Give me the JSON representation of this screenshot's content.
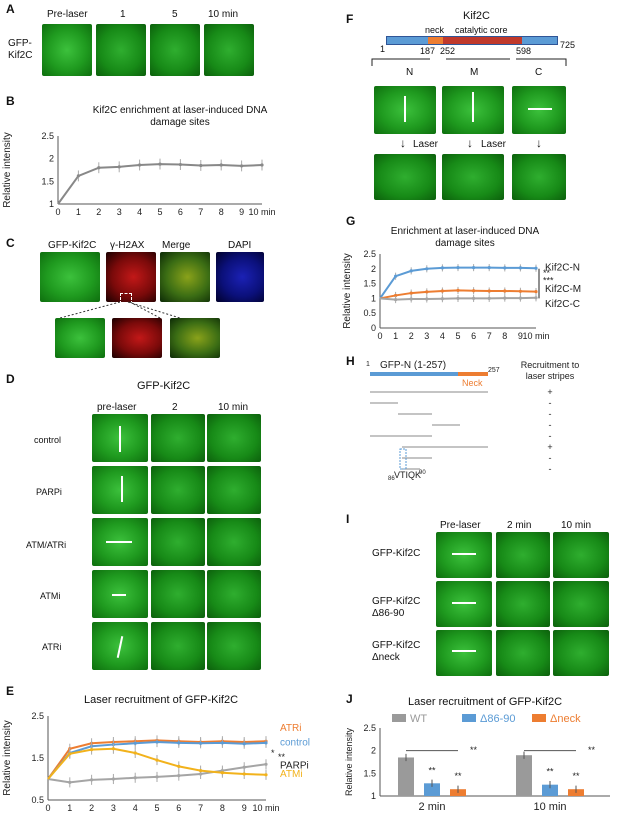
{
  "panels": {
    "A": {
      "label": "A",
      "rowlabel_1": "GFP-",
      "rowlabel_2": "Kif2C",
      "cols": [
        "Pre-laser",
        "1",
        "5",
        "10  min"
      ]
    },
    "B": {
      "label": "B",
      "title_1": "Kif2C enrichment at laser-induced DNA",
      "title_2": "damage sites",
      "ylabel": "Relative intensity",
      "xunit": "10 min"
    },
    "C": {
      "label": "C",
      "cols": [
        "GFP-Kif2C",
        "γ-H2AX",
        "Merge",
        "DAPI"
      ]
    },
    "D": {
      "label": "D",
      "header": "GFP-Kif2C",
      "cols": [
        "pre-laser",
        "2",
        "10  min"
      ],
      "rows": [
        "control",
        "PARPi",
        "ATM/ATRi",
        "ATMi",
        "ATRi"
      ]
    },
    "E": {
      "label": "E",
      "title": "Laser recruitment of GFP-Kif2C",
      "ylabel": "Relative intensity",
      "xunit": "10 min",
      "sig1": "*",
      "sig2": "**"
    },
    "F": {
      "label": "F",
      "title": "Kif2C",
      "domain_neck": "neck",
      "domain_core": "catalytic core",
      "pos": [
        "1",
        "187",
        "252",
        "598",
        "725"
      ],
      "frag": [
        "N",
        "M",
        "C"
      ],
      "laser": "Laser"
    },
    "G": {
      "label": "G",
      "title_1": "Enrichment at laser-induced DNA",
      "title_2": "damage sites",
      "ylabel": "Relative intensity",
      "xunit": "10 min",
      "sig1": "**",
      "sig2": "***"
    },
    "H": {
      "label": "H",
      "construct": "GFP-N (1-257)",
      "start": "1",
      "end": "257",
      "neck": "Neck",
      "motif": "VTIQK",
      "m_start": "86",
      "m_end": "90",
      "rec_1": "Recruitment to",
      "rec_2": "laser stripes",
      "results": [
        "+",
        "-",
        "-",
        "-",
        "-",
        "+",
        "-",
        "-"
      ]
    },
    "I": {
      "label": "I",
      "cols": [
        "Pre-laser",
        "2 min",
        "10 min"
      ],
      "row1": "GFP-Kif2C",
      "row2a": "GFP-Kif2C",
      "row2b": "Δ86-90",
      "row3a": "GFP-Kif2C",
      "row3b": "Δneck"
    },
    "J": {
      "label": "J",
      "title": "Laser recruitment of GFP-Kif2C",
      "ylabel": "Relative intensity",
      "xunit1": "2 min",
      "xunit2": "10 min",
      "sig": "**"
    }
  },
  "colors": {
    "grey": "#9a9a9a",
    "blue": "#5b9bd5",
    "orange": "#ed7d31",
    "yellow": "#f2b21b",
    "red_label": "#e06a1b",
    "blue_label": "#2f5597"
  },
  "chart_data": [
    {
      "id": "B",
      "type": "line",
      "x": [
        0,
        1,
        2,
        3,
        4,
        5,
        6,
        7,
        8,
        9,
        10
      ],
      "series": [
        {
          "values": [
            1.0,
            1.62,
            1.8,
            1.82,
            1.86,
            1.88,
            1.87,
            1.85,
            1.86,
            1.84,
            1.86
          ]
        }
      ],
      "ylim": [
        1,
        2.5
      ],
      "yticks": [
        "1",
        "1.5",
        "2",
        "2.5"
      ]
    },
    {
      "id": "E",
      "type": "line",
      "x": [
        0,
        1,
        2,
        3,
        4,
        5,
        6,
        7,
        8,
        9,
        10
      ],
      "series": [
        {
          "name": "ATRi",
          "color": "#ed7d31",
          "values": [
            1.0,
            1.72,
            1.85,
            1.88,
            1.9,
            1.92,
            1.9,
            1.88,
            1.9,
            1.88,
            1.9
          ]
        },
        {
          "name": "control",
          "color": "#5b9bd5",
          "values": [
            1.0,
            1.62,
            1.78,
            1.82,
            1.85,
            1.88,
            1.86,
            1.85,
            1.86,
            1.84,
            1.86
          ]
        },
        {
          "name": "PARPi",
          "color": "#a5a5a5",
          "values": [
            1.0,
            0.92,
            0.98,
            1.0,
            1.03,
            1.05,
            1.08,
            1.12,
            1.2,
            1.28,
            1.35
          ]
        },
        {
          "name": "ATMi",
          "color": "#f2b21b",
          "values": [
            1.0,
            1.6,
            1.7,
            1.72,
            1.62,
            1.45,
            1.3,
            1.2,
            1.15,
            1.12,
            1.1
          ]
        }
      ],
      "ylim": [
        0.5,
        2.5
      ],
      "yticks": [
        "0.5",
        "1.5",
        "2.5"
      ]
    },
    {
      "id": "G",
      "type": "line",
      "x": [
        0,
        1,
        2,
        3,
        4,
        5,
        6,
        7,
        8,
        9,
        10
      ],
      "series": [
        {
          "name": "Kif2C-N",
          "color": "#5b9bd5",
          "values": [
            1.0,
            1.75,
            1.93,
            2.0,
            2.03,
            2.04,
            2.04,
            2.04,
            2.03,
            2.03,
            2.02
          ]
        },
        {
          "name": "Kif2C-M",
          "color": "#ed7d31",
          "values": [
            1.0,
            1.1,
            1.18,
            1.22,
            1.25,
            1.27,
            1.26,
            1.25,
            1.25,
            1.24,
            1.23
          ]
        },
        {
          "name": "Kif2C-C",
          "color": "#a5a5a5",
          "values": [
            1.0,
            0.96,
            0.98,
            0.98,
            0.99,
            1.0,
            1.0,
            1.0,
            1.01,
            1.01,
            1.02
          ]
        }
      ],
      "ylim": [
        0,
        2.5
      ],
      "yticks": [
        "0",
        "0.5",
        "1",
        "1.5",
        "2",
        "2.5"
      ]
    },
    {
      "id": "J",
      "type": "bar",
      "categories": [
        "2 min",
        "10 min"
      ],
      "series": [
        {
          "name": "WT",
          "color": "#9a9a9a",
          "values": [
            1.85,
            1.9
          ]
        },
        {
          "name": "Δ86-90",
          "color": "#5b9bd5",
          "values": [
            1.28,
            1.25
          ]
        },
        {
          "name": "Δneck",
          "color": "#ed7d31",
          "values": [
            1.15,
            1.15
          ]
        }
      ],
      "ylim": [
        1,
        2.5
      ],
      "yticks": [
        "1",
        "1.5",
        "2",
        "2.5"
      ]
    }
  ]
}
